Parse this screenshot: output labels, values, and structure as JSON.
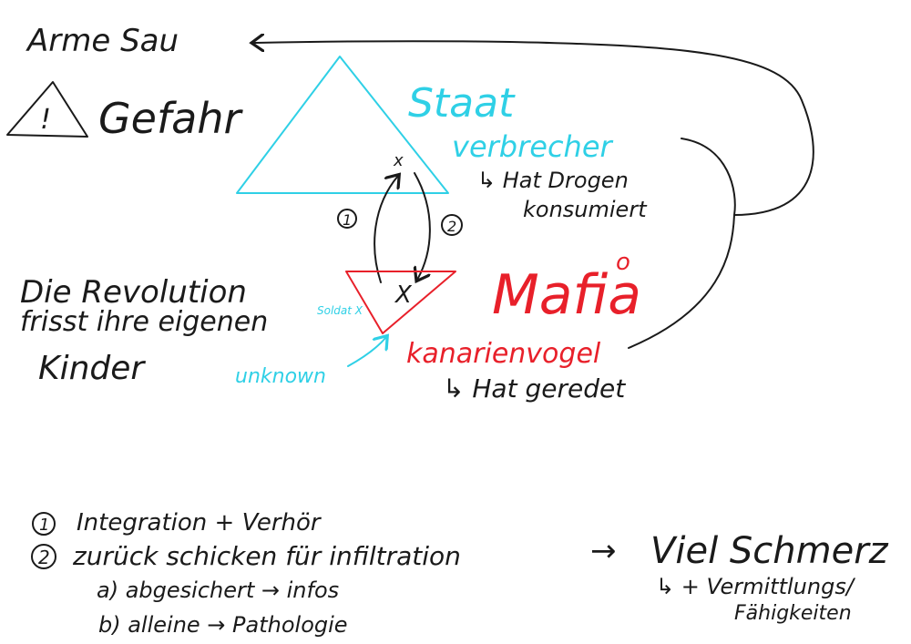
{
  "colors": {
    "black": "#1a1a1a",
    "cyan": "#2fd0e6",
    "red": "#e8202a",
    "background": "#ffffff"
  },
  "top_left": {
    "arme_sau": "Arme Sau",
    "gefahr": "Gefahr",
    "warning_mark": "!"
  },
  "staat": {
    "title": "Staat",
    "verbrecher": "verbrecher",
    "drogen_line1": "↳ Hat Drogen",
    "drogen_line2": "konsumiert",
    "x_mark": "x"
  },
  "arrows": {
    "marker_1": "1",
    "marker_2": "2"
  },
  "mafia": {
    "title": "Mafia",
    "title_extra": "o",
    "kanarienvogel": "kanarienvogel",
    "geredet": "↳ Hat geredet",
    "x_mark": "X",
    "small_label": "Soldat X"
  },
  "revolution": {
    "line1": "Die Revolution",
    "line2": "frisst ihre eigenen",
    "line3": "Kinder"
  },
  "unknown": "unknown",
  "notes": {
    "n1_num": "1",
    "n1_text": "Integration + Verhör",
    "n2_num": "2",
    "n2_text": "zurück schicken für infiltration",
    "n2_arrow": "→",
    "n2_result": "Viel Schmerz",
    "n2_result_sub1": "↳ + Vermittlungs/",
    "n2_result_sub2": "Fähigkeiten",
    "n2a": "a) abgesichert → infos",
    "n2b": "b) alleine → Pathologie"
  }
}
